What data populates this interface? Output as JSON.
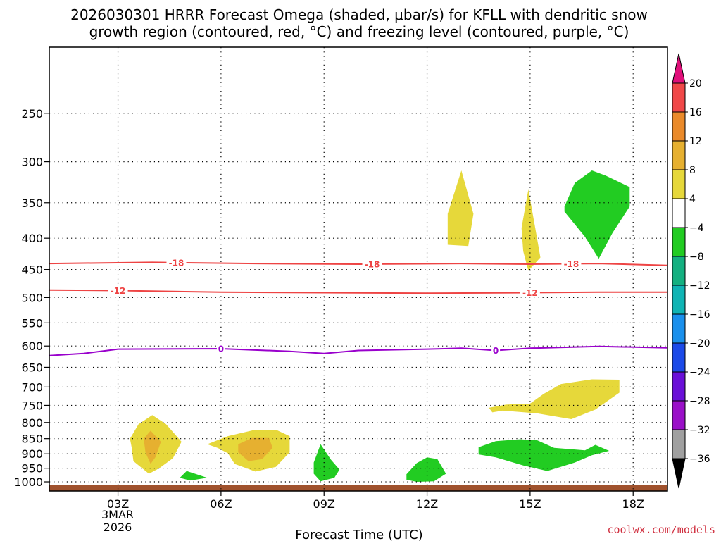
{
  "chart_data": {
    "type": "heatmap",
    "title_lines": [
      "2026030301 HRRR Forecast Omega (shaded, μbar/s) for KFLL with dendritic snow",
      "growth region (contoured, red, °C) and freezing level (contoured, purple, °C)"
    ],
    "xlabel": "Forecast Time (UTC)",
    "credit": "coolwx.com/models",
    "x_range_hours": [
      1,
      19
    ],
    "x_ticks": [
      {
        "hour": 3,
        "label": "03Z"
      },
      {
        "hour": 6,
        "label": "06Z"
      },
      {
        "hour": 9,
        "label": "09Z"
      },
      {
        "hour": 12,
        "label": "12Z"
      },
      {
        "hour": 15,
        "label": "15Z"
      },
      {
        "hour": 18,
        "label": "18Z"
      }
    ],
    "x_date_label": [
      "3MAR",
      "2026"
    ],
    "y_axis": {
      "type": "log-pressure",
      "range_hpa": [
        195,
        1035
      ],
      "ticks": [
        250,
        300,
        350,
        400,
        450,
        500,
        550,
        600,
        650,
        700,
        750,
        800,
        850,
        900,
        950,
        1000
      ]
    },
    "colorbar": {
      "levels": [
        20,
        16,
        12,
        8,
        4,
        -4,
        -8,
        -12,
        -16,
        -20,
        -24,
        -28,
        -32,
        -36
      ],
      "colors": [
        "#e0107a",
        "#f04848",
        "#ea8a2a",
        "#e6b030",
        "#e6d83a",
        "#ffffff",
        "#22cc22",
        "#14b080",
        "#10b4b4",
        "#1a90ec",
        "#1c4ae8",
        "#6a10d8",
        "#9a10c8",
        "#a0a0a0",
        "#000000"
      ]
    },
    "contours": [
      {
        "name": "dendritic-18",
        "label": "-18",
        "color": "#ee4444",
        "points": [
          [
            1,
            440
          ],
          [
            4,
            438
          ],
          [
            7,
            440
          ],
          [
            10,
            441
          ],
          [
            13,
            440
          ],
          [
            15,
            441
          ],
          [
            17,
            440
          ],
          [
            19,
            443
          ]
        ],
        "label_hours": [
          4.7,
          10.4,
          16.2
        ]
      },
      {
        "name": "dendritic-12",
        "label": "-12",
        "color": "#ee4444",
        "points": [
          [
            1,
            486
          ],
          [
            3,
            487
          ],
          [
            6,
            490
          ],
          [
            9,
            491
          ],
          [
            12,
            492
          ],
          [
            15,
            491
          ],
          [
            17,
            490
          ],
          [
            19,
            490
          ]
        ],
        "label_hours": [
          3.0,
          15.0
        ]
      },
      {
        "name": "freezing-level",
        "label": "0",
        "color": "#9900cc",
        "points": [
          [
            1,
            622
          ],
          [
            2,
            617
          ],
          [
            3,
            607
          ],
          [
            6,
            606
          ],
          [
            8,
            612
          ],
          [
            9,
            617
          ],
          [
            10,
            610
          ],
          [
            12,
            607
          ],
          [
            13,
            605
          ],
          [
            14,
            610
          ],
          [
            15,
            605
          ],
          [
            17,
            601
          ],
          [
            19,
            604
          ]
        ],
        "label_hours": [
          6.0,
          14.0
        ]
      }
    ],
    "omega_regions": [
      {
        "color": "#e6d83a",
        "value": 4,
        "points": [
          [
            12.6,
            365
          ],
          [
            13.0,
            310
          ],
          [
            13.35,
            365
          ],
          [
            13.2,
            412
          ],
          [
            12.6,
            410
          ]
        ]
      },
      {
        "color": "#e6d83a",
        "value": 4,
        "points": [
          [
            14.75,
            385
          ],
          [
            14.95,
            333
          ],
          [
            15.15,
            385
          ],
          [
            15.3,
            430
          ],
          [
            14.95,
            452
          ],
          [
            14.8,
            420
          ]
        ]
      },
      {
        "color": "#22cc22",
        "value": -4,
        "points": [
          [
            16.0,
            355
          ],
          [
            16.3,
            325
          ],
          [
            16.8,
            310
          ],
          [
            17.2,
            316
          ],
          [
            17.9,
            330
          ],
          [
            17.9,
            355
          ],
          [
            17.4,
            392
          ],
          [
            17.0,
            432
          ],
          [
            16.6,
            398
          ],
          [
            16.0,
            362
          ]
        ]
      },
      {
        "color": "#e6d83a",
        "value": 4,
        "points": [
          [
            13.8,
            757
          ],
          [
            14.3,
            748
          ],
          [
            15.0,
            745
          ],
          [
            15.4,
            718
          ],
          [
            15.9,
            692
          ],
          [
            16.8,
            680
          ],
          [
            17.6,
            681
          ],
          [
            17.6,
            715
          ],
          [
            16.9,
            762
          ],
          [
            16.2,
            790
          ],
          [
            15.2,
            773
          ],
          [
            14.2,
            765
          ],
          [
            13.9,
            770
          ]
        ]
      },
      {
        "color": "#e6d83a",
        "value": 4,
        "points": [
          [
            3.35,
            850
          ],
          [
            3.6,
            805
          ],
          [
            4.0,
            778
          ],
          [
            4.4,
            805
          ],
          [
            4.85,
            860
          ],
          [
            4.6,
            915
          ],
          [
            4.2,
            950
          ],
          [
            3.9,
            970
          ],
          [
            3.45,
            925
          ],
          [
            3.4,
            880
          ]
        ]
      },
      {
        "color": "#e6b030",
        "value": 8,
        "points": [
          [
            3.75,
            850
          ],
          [
            3.95,
            825
          ],
          [
            4.25,
            860
          ],
          [
            4.1,
            910
          ],
          [
            3.95,
            935
          ],
          [
            3.8,
            895
          ]
        ]
      },
      {
        "color": "#e6d83a",
        "value": 4,
        "points": [
          [
            5.6,
            868
          ],
          [
            6.2,
            842
          ],
          [
            7.0,
            822
          ],
          [
            7.6,
            822
          ],
          [
            8.0,
            842
          ],
          [
            8.0,
            895
          ],
          [
            7.6,
            945
          ],
          [
            7.0,
            962
          ],
          [
            6.4,
            935
          ],
          [
            6.2,
            898
          ],
          [
            5.9,
            880
          ]
        ]
      },
      {
        "color": "#e6b030",
        "value": 8,
        "points": [
          [
            6.5,
            868
          ],
          [
            6.9,
            848
          ],
          [
            7.4,
            848
          ],
          [
            7.5,
            880
          ],
          [
            7.2,
            918
          ],
          [
            6.8,
            925
          ],
          [
            6.5,
            895
          ]
        ]
      },
      {
        "color": "#22cc22",
        "value": -4,
        "points": [
          [
            4.8,
            985
          ],
          [
            5.0,
            960
          ],
          [
            5.6,
            985
          ],
          [
            5.1,
            995
          ]
        ]
      },
      {
        "color": "#22cc22",
        "value": -4,
        "points": [
          [
            8.7,
            930
          ],
          [
            8.9,
            868
          ],
          [
            9.2,
            920
          ],
          [
            9.45,
            955
          ],
          [
            9.3,
            985
          ],
          [
            8.9,
            998
          ],
          [
            8.7,
            970
          ]
        ]
      },
      {
        "color": "#22cc22",
        "value": -4,
        "points": [
          [
            11.4,
            972
          ],
          [
            11.7,
            932
          ],
          [
            12.0,
            912
          ],
          [
            12.3,
            918
          ],
          [
            12.55,
            970
          ],
          [
            12.2,
            998
          ],
          [
            11.7,
            1000
          ],
          [
            11.4,
            992
          ]
        ]
      },
      {
        "color": "#22cc22",
        "value": -4,
        "points": [
          [
            13.5,
            878
          ],
          [
            14.0,
            858
          ],
          [
            14.7,
            852
          ],
          [
            15.2,
            855
          ],
          [
            15.7,
            880
          ],
          [
            16.6,
            888
          ],
          [
            16.9,
            870
          ],
          [
            17.3,
            890
          ],
          [
            16.8,
            905
          ],
          [
            16.3,
            930
          ],
          [
            15.5,
            960
          ],
          [
            14.8,
            940
          ],
          [
            14.0,
            912
          ],
          [
            13.5,
            902
          ]
        ]
      }
    ],
    "terrain_band_hpa": [
      1013,
      1035
    ]
  }
}
